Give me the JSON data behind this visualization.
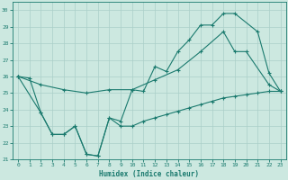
{
  "xlabel": "Humidex (Indice chaleur)",
  "background_color": "#cce8e0",
  "grid_color": "#aacfc8",
  "line_color": "#1a7a6e",
  "xlim": [
    -0.5,
    23.5
  ],
  "ylim": [
    21,
    30.5
  ],
  "yticks": [
    21,
    22,
    23,
    24,
    25,
    26,
    27,
    28,
    29,
    30
  ],
  "xticks": [
    0,
    1,
    2,
    3,
    4,
    5,
    6,
    7,
    8,
    9,
    10,
    11,
    12,
    13,
    14,
    15,
    16,
    17,
    18,
    19,
    20,
    21,
    22,
    23
  ],
  "line_top_x": [
    0,
    2,
    3,
    4,
    5,
    6,
    7,
    8,
    9,
    10,
    11,
    12,
    13,
    14,
    15,
    16,
    17,
    18,
    19,
    21,
    22,
    23
  ],
  "line_top_y": [
    26.0,
    23.8,
    22.5,
    22.5,
    23.0,
    21.3,
    21.2,
    23.5,
    23.3,
    25.2,
    25.1,
    26.6,
    26.3,
    27.5,
    28.2,
    29.1,
    29.1,
    29.8,
    29.8,
    28.7,
    26.2,
    25.1
  ],
  "line_bot_x": [
    0,
    1,
    2,
    3,
    4,
    5,
    6,
    7,
    8,
    9,
    10,
    11,
    12,
    13,
    14,
    15,
    16,
    17,
    18,
    19,
    20,
    21,
    22,
    23
  ],
  "line_bot_y": [
    26.0,
    25.9,
    23.8,
    22.5,
    22.5,
    23.0,
    21.3,
    21.2,
    23.5,
    23.0,
    23.0,
    23.3,
    23.5,
    23.7,
    23.9,
    24.1,
    24.3,
    24.5,
    24.7,
    24.8,
    24.9,
    25.0,
    25.1,
    25.1
  ],
  "line_mid_x": [
    0,
    2,
    4,
    6,
    8,
    10,
    12,
    14,
    16,
    18,
    19,
    20,
    22,
    23
  ],
  "line_mid_y": [
    26.0,
    25.5,
    25.2,
    25.0,
    25.2,
    25.2,
    25.8,
    26.4,
    27.5,
    28.7,
    27.5,
    27.5,
    25.5,
    25.1
  ]
}
